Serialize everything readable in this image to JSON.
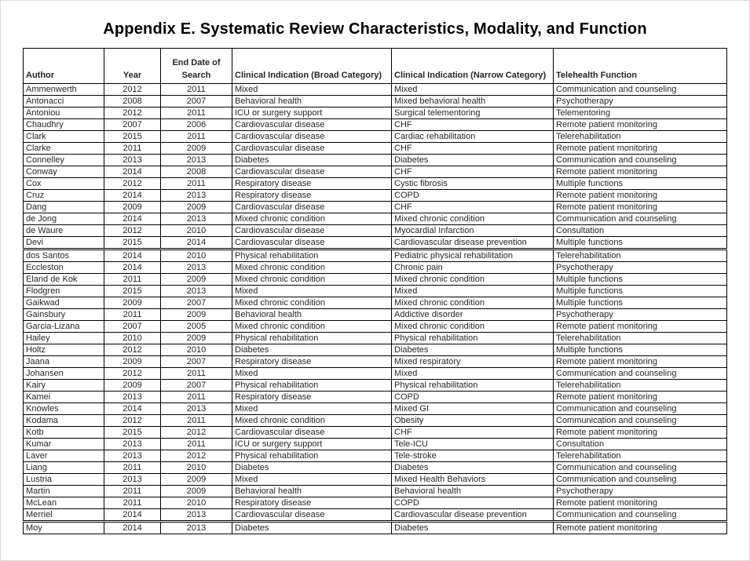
{
  "page": {
    "title": "Appendix E. Systematic Review Characteristics, Modality, and Function"
  },
  "colors": {
    "background": "#ffffff",
    "border": "#000000",
    "text": "#262626",
    "title": "#000000"
  },
  "table": {
    "columns": [
      {
        "key": "author",
        "label": "Author",
        "align": "left"
      },
      {
        "key": "year",
        "label": "Year",
        "align": "center"
      },
      {
        "key": "end_date",
        "label": "End Date of Search",
        "align": "center"
      },
      {
        "key": "broad",
        "label": "Clinical Indication (Broad Category)",
        "align": "left"
      },
      {
        "key": "narrow",
        "label": "Clinical Indication (Narrow Category)",
        "align": "left"
      },
      {
        "key": "function",
        "label": "Telehealth Function",
        "align": "left"
      }
    ],
    "section_break_before": [
      "dos Santos",
      "Moy"
    ],
    "rows": [
      [
        "Ammenwerth",
        "2012",
        "2011",
        "Mixed",
        "Mixed",
        "Communication and counseling"
      ],
      [
        "Antonacci",
        "2008",
        "2007",
        "Behavioral health",
        "Mixed behavioral health",
        "Psychotherapy"
      ],
      [
        "Antoniou",
        "2012",
        "2011",
        "ICU or surgery support",
        "Surgical telementoring",
        "Telementoring"
      ],
      [
        "Chaudhry",
        "2007",
        "2006",
        "Cardiovascular disease",
        "CHF",
        "Remote patient monitoring"
      ],
      [
        "Clark",
        "2015",
        "2011",
        "Cardiovascular disease",
        "Cardiac rehabilitation",
        "Telerehabilitation"
      ],
      [
        "Clarke",
        "2011",
        "2009",
        "Cardiovascular disease",
        "CHF",
        "Remote patient monitoring"
      ],
      [
        "Connelley",
        "2013",
        "2013",
        "Diabetes",
        "Diabetes",
        "Communication and counseling"
      ],
      [
        "Conway",
        "2014",
        "2008",
        "Cardiovascular disease",
        "CHF",
        "Remote patient monitoring"
      ],
      [
        "Cox",
        "2012",
        "2011",
        "Respiratory disease",
        "Cystic fibrosis",
        "Multiple functions"
      ],
      [
        "Cruz",
        "2014",
        "2013",
        "Respiratory disease",
        "COPD",
        "Remote patient monitoring"
      ],
      [
        "Dang",
        "2009",
        "2009",
        "Cardiovascular disease",
        "CHF",
        "Remote patient monitoring"
      ],
      [
        "de Jong",
        "2014",
        "2013",
        "Mixed chronic condition",
        "Mixed chronic condition",
        "Communication and counseling"
      ],
      [
        "de Waure",
        "2012",
        "2010",
        "Cardiovascular disease",
        "Myocardial Infarction",
        "Consultation"
      ],
      [
        "Devi",
        "2015",
        "2014",
        "Cardiovascular disease",
        "Cardiovascular disease prevention",
        "Multiple functions"
      ],
      [
        "dos Santos",
        "2014",
        "2010",
        "Physical rehabilitation",
        "Pediatric physical rehabilitation",
        "Telerehabilitation"
      ],
      [
        "Eccleston",
        "2014",
        "2013",
        "Mixed chronic condition",
        "Chronic pain",
        "Psychotherapy"
      ],
      [
        "Eland de Kok",
        "2011",
        "2009",
        "Mixed chronic condition",
        "Mixed chronic condition",
        "Multiple functions"
      ],
      [
        "Flodgren",
        "2015",
        "2013",
        "Mixed",
        "Mixed",
        "Multiple functions"
      ],
      [
        "Gaikwad",
        "2009",
        "2007",
        "Mixed chronic condition",
        "Mixed chronic condition",
        "Multiple functions"
      ],
      [
        "Gainsbury",
        "2011",
        "2009",
        "Behavioral health",
        "Addictive disorder",
        "Psychotherapy"
      ],
      [
        "Garcia-Lizana",
        "2007",
        "2005",
        "Mixed chronic condition",
        "Mixed chronic condition",
        "Remote patient monitoring"
      ],
      [
        "Hailey",
        "2010",
        "2009",
        "Physical rehabilitation",
        "Physical rehabilitation",
        "Telerehabilitation"
      ],
      [
        "Holtz",
        "2012",
        "2010",
        "Diabetes",
        "Diabetes",
        "Multiple functions"
      ],
      [
        "Jaana",
        "2009",
        "2007",
        "Respiratory disease",
        "Mixed respiratory",
        "Remote patient monitoring"
      ],
      [
        "Johansen",
        "2012",
        "2011",
        "Mixed",
        "Mixed",
        "Communication and counseling"
      ],
      [
        "Kairy",
        "2009",
        "2007",
        "Physical rehabilitation",
        "Physical rehabilitation",
        "Telerehabilitation"
      ],
      [
        "Kamei",
        "2013",
        "2011",
        "Respiratory disease",
        "COPD",
        "Remote patient monitoring"
      ],
      [
        "Knowles",
        "2014",
        "2013",
        "Mixed",
        "Mixed GI",
        "Communication and counseling"
      ],
      [
        "Kodama",
        "2012",
        "2011",
        "Mixed chronic condition",
        "Obesity",
        "Communication and counseling"
      ],
      [
        "Kotb",
        "2015",
        "2012",
        "Cardiovascular disease",
        "CHF",
        "Remote patient monitoring"
      ],
      [
        "Kumar",
        "2013",
        "2011",
        "ICU or surgery support",
        "Tele-ICU",
        "Consultation"
      ],
      [
        "Laver",
        "2013",
        "2012",
        "Physical rehabilitation",
        "Tele-stroke",
        "Telerehabilitation"
      ],
      [
        "Liang",
        "2011",
        "2010",
        "Diabetes",
        "Diabetes",
        "Communication and counseling"
      ],
      [
        "Lustria",
        "2013",
        "2009",
        "Mixed",
        "Mixed Health Behaviors",
        "Communication and counseling"
      ],
      [
        "Martin",
        "2011",
        "2009",
        "Behavioral health",
        "Behavioral health",
        "Psychotherapy"
      ],
      [
        "McLean",
        "2011",
        "2010",
        "Respiratory disease",
        "COPD",
        "Remote patient monitoring"
      ],
      [
        "Merriel",
        "2014",
        "2013",
        "Cardiovascular disease",
        "Cardiovascular disease prevention",
        "Communication and counseling"
      ],
      [
        "Moy",
        "2014",
        "2013",
        "Diabetes",
        "Diabetes",
        "Remote patient monitoring"
      ]
    ]
  }
}
